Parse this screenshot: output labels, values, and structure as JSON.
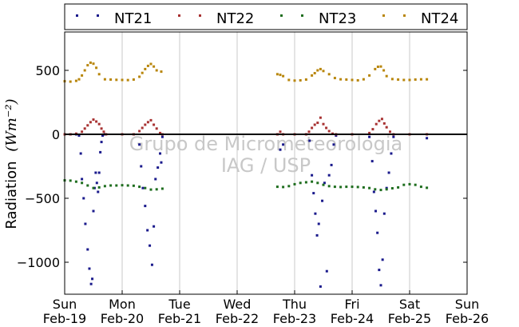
{
  "chart_data": {
    "type": "scatter",
    "ylabel": "Radiation",
    "ylabel_unit": "(Wm⁻²)",
    "ylim": [
      -1250,
      800
    ],
    "yticks": [
      500,
      0,
      -500,
      -1000
    ],
    "ytick_labels": [
      "500",
      "0",
      "−500",
      "−1000"
    ],
    "x_ticks": [
      {
        "day": 0,
        "line1": "Sun",
        "line2": "Feb-19"
      },
      {
        "day": 1,
        "line1": "Mon",
        "line2": "Feb-20"
      },
      {
        "day": 2,
        "line1": "Tue",
        "line2": "Feb-21"
      },
      {
        "day": 3,
        "line1": "Wed",
        "line2": "Feb-22"
      },
      {
        "day": 4,
        "line1": "Thu",
        "line2": "Feb-23"
      },
      {
        "day": 5,
        "line1": "Fri",
        "line2": "Feb-24"
      },
      {
        "day": 6,
        "line1": "Sat",
        "line2": "Feb-25"
      },
      {
        "day": 7,
        "line1": "Sun",
        "line2": "Feb-26"
      }
    ],
    "xlim": [
      0,
      7
    ],
    "vertical_grid": true,
    "zero_line": true,
    "legend_position": "top-outside",
    "watermark": [
      "Grupo de Micrometeorologia",
      "IAG / USP"
    ],
    "series": [
      {
        "name": "NT21",
        "color": "#1a1a8c",
        "points": [
          [
            0.0,
            0
          ],
          [
            0.1,
            0
          ],
          [
            0.2,
            0
          ],
          [
            0.25,
            -10
          ],
          [
            0.28,
            -150
          ],
          [
            0.3,
            -350
          ],
          [
            0.33,
            -500
          ],
          [
            0.36,
            -700
          ],
          [
            0.4,
            -900
          ],
          [
            0.43,
            -1050
          ],
          [
            0.46,
            -1170
          ],
          [
            0.48,
            -1130
          ],
          [
            0.5,
            -600
          ],
          [
            0.52,
            -420
          ],
          [
            0.54,
            -300
          ],
          [
            0.56,
            -380
          ],
          [
            0.58,
            -450
          ],
          [
            0.6,
            -300
          ],
          [
            0.62,
            -140
          ],
          [
            0.64,
            -60
          ],
          [
            0.66,
            -10
          ],
          [
            0.7,
            0
          ],
          [
            1.0,
            0
          ],
          [
            1.2,
            0
          ],
          [
            1.3,
            -80
          ],
          [
            1.33,
            -250
          ],
          [
            1.36,
            -420
          ],
          [
            1.4,
            -560
          ],
          [
            1.44,
            -750
          ],
          [
            1.48,
            -870
          ],
          [
            1.52,
            -1020
          ],
          [
            1.55,
            -720
          ],
          [
            1.58,
            -350
          ],
          [
            1.62,
            -260
          ],
          [
            1.66,
            -150
          ],
          [
            1.68,
            -220
          ],
          [
            1.7,
            -20
          ],
          [
            3.7,
            0
          ],
          [
            3.75,
            -120
          ],
          [
            3.8,
            -80
          ],
          [
            4.0,
            0
          ],
          [
            4.2,
            0
          ],
          [
            4.26,
            -50
          ],
          [
            4.3,
            -320
          ],
          [
            4.33,
            -460
          ],
          [
            4.36,
            -620
          ],
          [
            4.39,
            -790
          ],
          [
            4.42,
            -700
          ],
          [
            4.45,
            -1190
          ],
          [
            4.48,
            -520
          ],
          [
            4.52,
            -380
          ],
          [
            4.56,
            -1070
          ],
          [
            4.6,
            -320
          ],
          [
            4.64,
            -240
          ],
          [
            4.68,
            -80
          ],
          [
            4.72,
            -10
          ],
          [
            5.0,
            0
          ],
          [
            5.3,
            -20
          ],
          [
            5.35,
            -210
          ],
          [
            5.38,
            -450
          ],
          [
            5.41,
            -600
          ],
          [
            5.44,
            -770
          ],
          [
            5.47,
            -1060
          ],
          [
            5.5,
            -1180
          ],
          [
            5.53,
            -980
          ],
          [
            5.56,
            -620
          ],
          [
            5.6,
            -420
          ],
          [
            5.64,
            -300
          ],
          [
            5.68,
            -150
          ],
          [
            5.72,
            -20
          ],
          [
            6.0,
            0
          ],
          [
            6.3,
            -30
          ]
        ]
      },
      {
        "name": "NT22",
        "color": "#a83232",
        "points": [
          [
            0.0,
            0
          ],
          [
            0.1,
            0
          ],
          [
            0.2,
            5
          ],
          [
            0.3,
            20
          ],
          [
            0.35,
            45
          ],
          [
            0.4,
            70
          ],
          [
            0.45,
            95
          ],
          [
            0.5,
            115
          ],
          [
            0.55,
            100
          ],
          [
            0.6,
            80
          ],
          [
            0.64,
            45
          ],
          [
            0.68,
            20
          ],
          [
            0.72,
            0
          ],
          [
            1.0,
            0
          ],
          [
            1.2,
            0
          ],
          [
            1.3,
            25
          ],
          [
            1.35,
            50
          ],
          [
            1.4,
            75
          ],
          [
            1.45,
            95
          ],
          [
            1.5,
            110
          ],
          [
            1.55,
            75
          ],
          [
            1.6,
            45
          ],
          [
            1.66,
            10
          ],
          [
            1.7,
            0
          ],
          [
            3.7,
            0
          ],
          [
            3.75,
            20
          ],
          [
            3.8,
            0
          ],
          [
            4.0,
            0
          ],
          [
            4.2,
            0
          ],
          [
            4.25,
            20
          ],
          [
            4.3,
            50
          ],
          [
            4.35,
            75
          ],
          [
            4.4,
            90
          ],
          [
            4.45,
            130
          ],
          [
            4.5,
            80
          ],
          [
            4.55,
            50
          ],
          [
            4.6,
            25
          ],
          [
            4.66,
            5
          ],
          [
            4.72,
            0
          ],
          [
            5.0,
            0
          ],
          [
            5.3,
            10
          ],
          [
            5.36,
            40
          ],
          [
            5.42,
            80
          ],
          [
            5.47,
            105
          ],
          [
            5.52,
            120
          ],
          [
            5.56,
            85
          ],
          [
            5.6,
            55
          ],
          [
            5.66,
            20
          ],
          [
            5.72,
            0
          ],
          [
            6.0,
            0
          ],
          [
            6.3,
            0
          ]
        ]
      },
      {
        "name": "NT23",
        "color": "#1f6e1f",
        "points": [
          [
            0.0,
            -360
          ],
          [
            0.1,
            -362
          ],
          [
            0.2,
            -370
          ],
          [
            0.3,
            -380
          ],
          [
            0.4,
            -400
          ],
          [
            0.5,
            -420
          ],
          [
            0.6,
            -415
          ],
          [
            0.7,
            -405
          ],
          [
            0.8,
            -400
          ],
          [
            0.9,
            -400
          ],
          [
            1.0,
            -398
          ],
          [
            1.1,
            -400
          ],
          [
            1.2,
            -402
          ],
          [
            1.3,
            -410
          ],
          [
            1.4,
            -420
          ],
          [
            1.5,
            -432
          ],
          [
            1.6,
            -430
          ],
          [
            1.7,
            -425
          ],
          [
            3.7,
            -410
          ],
          [
            3.8,
            -412
          ],
          [
            3.9,
            -405
          ],
          [
            4.0,
            -390
          ],
          [
            4.1,
            -380
          ],
          [
            4.2,
            -375
          ],
          [
            4.3,
            -370
          ],
          [
            4.4,
            -380
          ],
          [
            4.5,
            -395
          ],
          [
            4.6,
            -405
          ],
          [
            4.7,
            -410
          ],
          [
            4.8,
            -412
          ],
          [
            4.9,
            -410
          ],
          [
            5.0,
            -410
          ],
          [
            5.1,
            -412
          ],
          [
            5.2,
            -415
          ],
          [
            5.3,
            -420
          ],
          [
            5.4,
            -430
          ],
          [
            5.5,
            -435
          ],
          [
            5.6,
            -430
          ],
          [
            5.7,
            -422
          ],
          [
            5.8,
            -415
          ],
          [
            5.9,
            -395
          ],
          [
            6.0,
            -390
          ],
          [
            6.1,
            -395
          ],
          [
            6.2,
            -410
          ],
          [
            6.3,
            -418
          ]
        ]
      },
      {
        "name": "NT24",
        "color": "#b8860b",
        "points": [
          [
            0.0,
            415
          ],
          [
            0.1,
            412
          ],
          [
            0.2,
            418
          ],
          [
            0.25,
            430
          ],
          [
            0.3,
            460
          ],
          [
            0.35,
            500
          ],
          [
            0.4,
            540
          ],
          [
            0.45,
            560
          ],
          [
            0.5,
            552
          ],
          [
            0.55,
            520
          ],
          [
            0.6,
            470
          ],
          [
            0.7,
            430
          ],
          [
            0.8,
            428
          ],
          [
            0.9,
            426
          ],
          [
            1.0,
            425
          ],
          [
            1.1,
            424
          ],
          [
            1.2,
            428
          ],
          [
            1.3,
            450
          ],
          [
            1.35,
            480
          ],
          [
            1.4,
            510
          ],
          [
            1.45,
            535
          ],
          [
            1.5,
            550
          ],
          [
            1.55,
            530
          ],
          [
            1.6,
            500
          ],
          [
            1.68,
            490
          ],
          [
            3.7,
            470
          ],
          [
            3.75,
            465
          ],
          [
            3.8,
            455
          ],
          [
            3.9,
            425
          ],
          [
            4.0,
            420
          ],
          [
            4.1,
            422
          ],
          [
            4.2,
            428
          ],
          [
            4.3,
            460
          ],
          [
            4.35,
            478
          ],
          [
            4.4,
            500
          ],
          [
            4.45,
            510
          ],
          [
            4.5,
            495
          ],
          [
            4.6,
            470
          ],
          [
            4.7,
            440
          ],
          [
            4.8,
            430
          ],
          [
            4.9,
            428
          ],
          [
            5.0,
            425
          ],
          [
            5.1,
            422
          ],
          [
            5.2,
            430
          ],
          [
            5.3,
            460
          ],
          [
            5.4,
            510
          ],
          [
            5.45,
            528
          ],
          [
            5.5,
            530
          ],
          [
            5.55,
            500
          ],
          [
            5.6,
            455
          ],
          [
            5.7,
            432
          ],
          [
            5.8,
            428
          ],
          [
            5.9,
            425
          ],
          [
            6.0,
            425
          ],
          [
            6.1,
            428
          ],
          [
            6.2,
            430
          ],
          [
            6.3,
            430
          ]
        ]
      }
    ]
  }
}
